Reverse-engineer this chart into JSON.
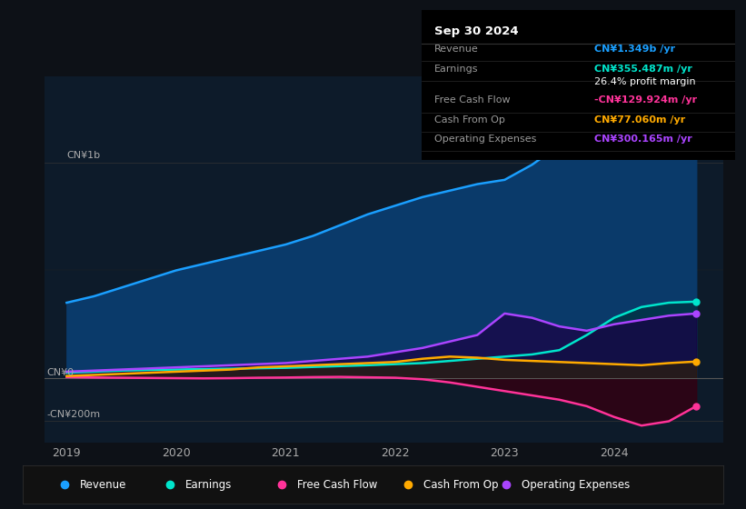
{
  "bg_color": "#0d1117",
  "plot_bg_color": "#0d1b2a",
  "info_title": "Sep 30 2024",
  "ylabel_top": "CN¥1b",
  "ylabel_zero": "CN¥0",
  "ylabel_neg": "-CN¥200m",
  "x_ticks": [
    2019,
    2020,
    2021,
    2022,
    2023,
    2024
  ],
  "series": {
    "revenue": {
      "color": "#1a9fff",
      "fill_color": "#0a3a6a",
      "label": "Revenue"
    },
    "earnings": {
      "color": "#00e5cc",
      "fill_color": "#003344",
      "label": "Earnings"
    },
    "free_cash_flow": {
      "color": "#ff3399",
      "fill_color": "#330011",
      "label": "Free Cash Flow"
    },
    "cash_from_op": {
      "color": "#ffaa00",
      "fill_color": "#332200",
      "label": "Cash From Op"
    },
    "operating_expenses": {
      "color": "#aa44ff",
      "fill_color": "#1a0044",
      "label": "Operating Expenses"
    }
  },
  "info_rows": [
    {
      "label": "Revenue",
      "value": "CN¥1.349b /yr",
      "value_color": "#1a9fff"
    },
    {
      "label": "Earnings",
      "value": "CN¥355.487m /yr",
      "value_color": "#00e5cc"
    },
    {
      "label": "",
      "value": "26.4% profit margin",
      "value_color": "#ffffff"
    },
    {
      "label": "Free Cash Flow",
      "value": "-CN¥129.924m /yr",
      "value_color": "#ff3399"
    },
    {
      "label": "Cash From Op",
      "value": "CN¥77.060m /yr",
      "value_color": "#ffaa00"
    },
    {
      "label": "Operating Expenses",
      "value": "CN¥300.165m /yr",
      "value_color": "#aa44ff"
    }
  ],
  "legend": [
    {
      "label": "Revenue",
      "color": "#1a9fff"
    },
    {
      "label": "Earnings",
      "color": "#00e5cc"
    },
    {
      "label": "Free Cash Flow",
      "color": "#ff3399"
    },
    {
      "label": "Cash From Op",
      "color": "#ffaa00"
    },
    {
      "label": "Operating Expenses",
      "color": "#aa44ff"
    }
  ]
}
